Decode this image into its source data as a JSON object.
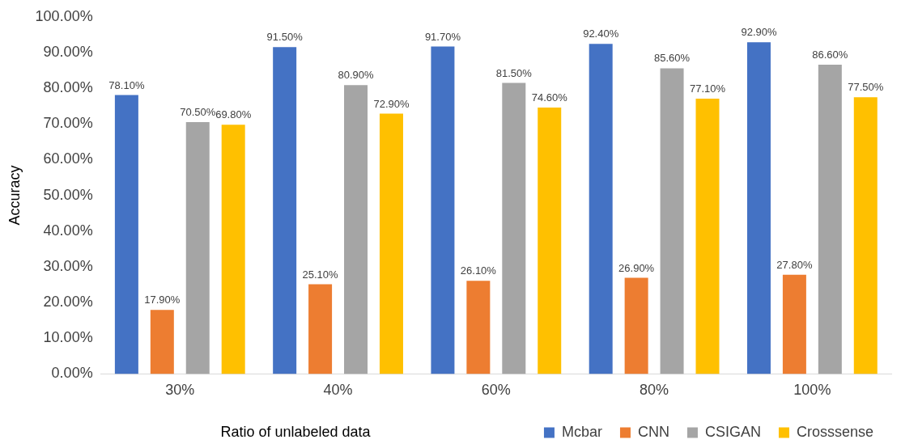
{
  "chart_data": {
    "type": "bar",
    "xlabel": "Ratio of unlabeled data",
    "ylabel": "Accuracy",
    "categories": [
      "30%",
      "40%",
      "60%",
      "80%",
      "100%"
    ],
    "series": [
      {
        "name": "Mcbar",
        "color": "#4472c4",
        "values": [
          78.1,
          91.5,
          91.7,
          92.4,
          92.9
        ],
        "value_labels": [
          "78.10%",
          "91.50%",
          "91.70%",
          "92.40%",
          "92.90%"
        ]
      },
      {
        "name": "CNN",
        "color": "#ed7d31",
        "values": [
          17.9,
          25.1,
          26.1,
          26.9,
          27.8
        ],
        "value_labels": [
          "17.90%",
          "25.10%",
          "26.10%",
          "26.90%",
          "27.80%"
        ]
      },
      {
        "name": "CSIGAN",
        "color": "#a5a5a5",
        "values": [
          70.5,
          80.9,
          81.5,
          85.6,
          86.6
        ],
        "value_labels": [
          "70.50%",
          "80.90%",
          "81.50%",
          "85.60%",
          "86.60%"
        ]
      },
      {
        "name": "Crosssense",
        "color": "#ffc000",
        "values": [
          69.8,
          72.9,
          74.6,
          77.1,
          77.5
        ],
        "value_labels": [
          "69.80%",
          "72.90%",
          "74.60%",
          "77.10%",
          "77.50%"
        ]
      }
    ],
    "ylim": [
      0,
      100
    ],
    "yticks": [
      {
        "value": 0,
        "label": "0.00%"
      },
      {
        "value": 10,
        "label": "10.00%"
      },
      {
        "value": 20,
        "label": "20.00%"
      },
      {
        "value": 30,
        "label": "30.00%"
      },
      {
        "value": 40,
        "label": "40.00%"
      },
      {
        "value": 50,
        "label": "50.00%"
      },
      {
        "value": 60,
        "label": "60.00%"
      },
      {
        "value": 70,
        "label": "70.00%"
      },
      {
        "value": 80,
        "label": "80.00%"
      },
      {
        "value": 90,
        "label": "90.00%"
      },
      {
        "value": 100,
        "label": "100.00%"
      }
    ],
    "grid": false,
    "legend": "bottom right"
  }
}
